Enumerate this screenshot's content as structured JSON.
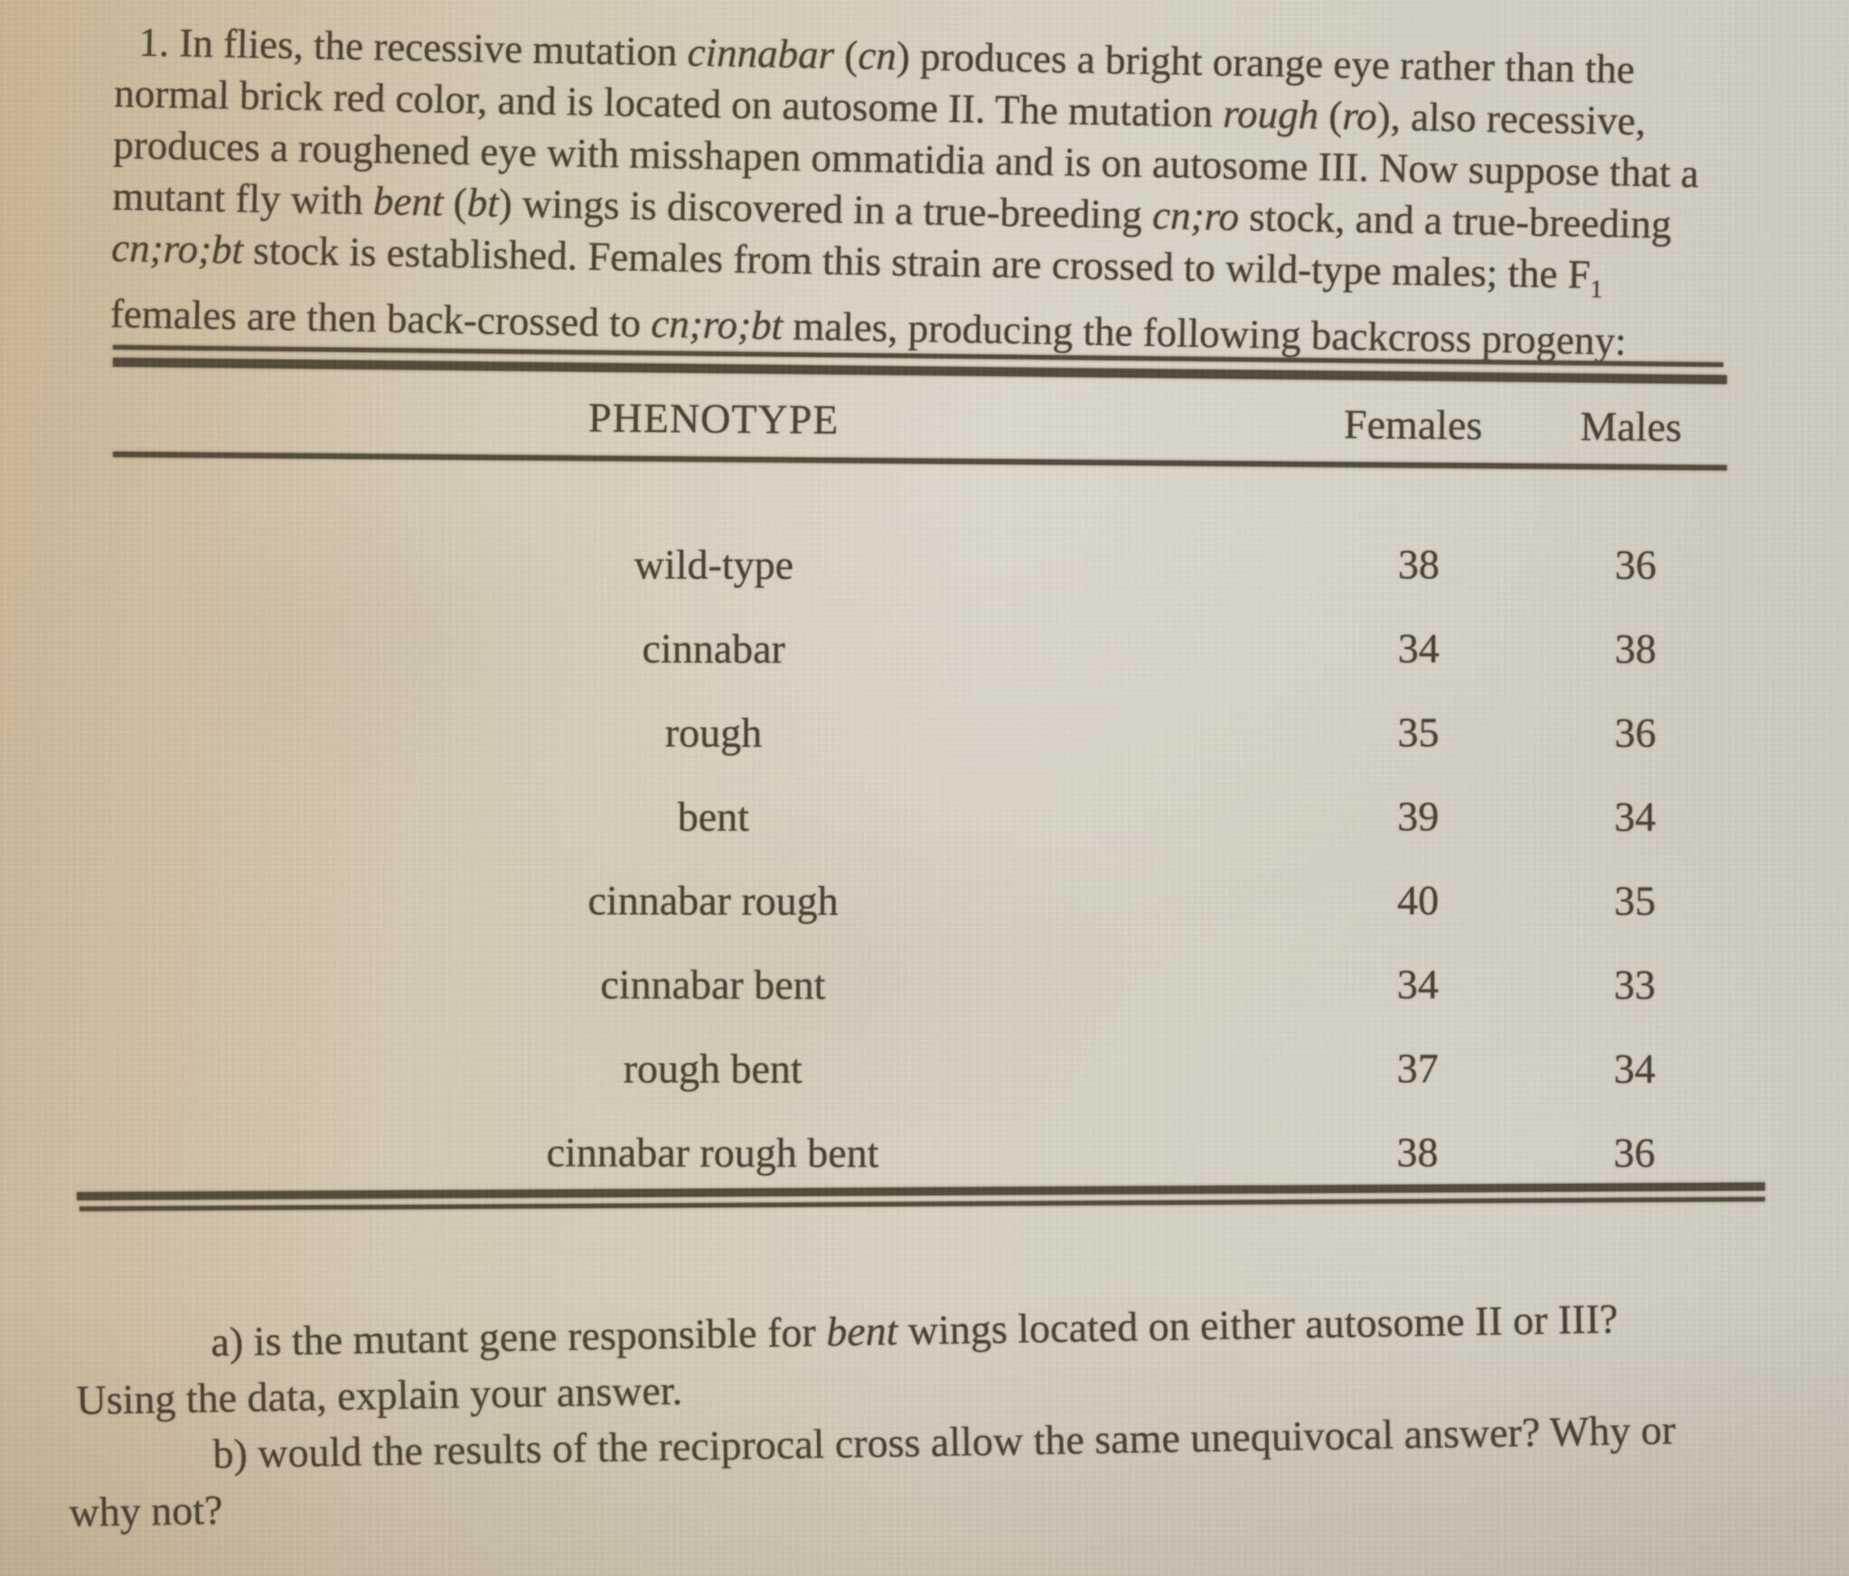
{
  "colors": {
    "paper_tan": "#cdbb9e",
    "paper_light": "#d9d3c5",
    "ink": "#4b4334",
    "rule": "#534c3a"
  },
  "intro": {
    "lines": [
      {
        "indent": 26,
        "seg": [
          {
            "t": "1. In flies, the recessive mutation "
          },
          {
            "t": "cinnabar",
            "i": true
          },
          {
            "t": " ("
          },
          {
            "t": "cn",
            "i": true
          },
          {
            "t": ") produces a bright orange eye rather than the"
          }
        ]
      },
      {
        "seg": [
          {
            "t": "normal brick red color, and is located on autosome II. The mutation "
          },
          {
            "t": "rough",
            "i": true
          },
          {
            "t": " ("
          },
          {
            "t": "ro",
            "i": true
          },
          {
            "t": "), also recessive,"
          }
        ]
      },
      {
        "seg": [
          {
            "t": "produces a roughened eye with misshapen ommatidia and is on autosome III. Now suppose that a"
          }
        ]
      },
      {
        "seg": [
          {
            "t": "mutant fly with "
          },
          {
            "t": "bent",
            "i": true
          },
          {
            "t": " ("
          },
          {
            "t": "bt",
            "i": true
          },
          {
            "t": ") wings is discovered in a true-breeding "
          },
          {
            "t": "cn;ro",
            "i": true
          },
          {
            "t": " stock, and a true-breeding"
          }
        ]
      },
      {
        "seg": [
          {
            "t": "cn;ro;bt",
            "i": true
          },
          {
            "t": " stock is established. Females from this strain are crossed to wild-type males; the F"
          },
          {
            "t": "1",
            "sub": true
          }
        ]
      },
      {
        "seg": [
          {
            "t": "females are then back-crossed to "
          },
          {
            "t": "cn;ro;bt",
            "i": true
          },
          {
            "t": " males, producing the following backcross progeny:"
          }
        ]
      }
    ]
  },
  "table": {
    "headers": {
      "phenotype": "PHENOTYPE",
      "females": "Females",
      "males": "Males"
    },
    "rows": [
      {
        "phenotype": "wild-type",
        "females": 38,
        "males": 36
      },
      {
        "phenotype": "cinnabar",
        "females": 34,
        "males": 38
      },
      {
        "phenotype": "rough",
        "females": 35,
        "males": 36
      },
      {
        "phenotype": "bent",
        "females": 39,
        "males": 34
      },
      {
        "phenotype": "cinnabar rough",
        "females": 40,
        "males": 35
      },
      {
        "phenotype": "cinnabar bent",
        "females": 34,
        "males": 33
      },
      {
        "phenotype": "rough bent",
        "females": 37,
        "males": 34
      },
      {
        "phenotype": "cinnabar rough bent",
        "females": 38,
        "males": 36
      }
    ]
  },
  "questions": {
    "lines": [
      {
        "indent": 165,
        "seg": [
          {
            "t": "a) is the mutant gene responsible for "
          },
          {
            "t": "bent",
            "i": true
          },
          {
            "t": " wings located on either autosome II or III?"
          }
        ]
      },
      {
        "indent": 15,
        "seg": [
          {
            "t": "Using the data, explain your answer."
          }
        ]
      },
      {
        "indent": 165,
        "seg": [
          {
            "t": "b) would the results of the reciprocal cross allow the same unequivocal answer? Why or"
          }
        ]
      },
      {
        "indent": 5,
        "seg": [
          {
            "t": "why not?"
          }
        ]
      }
    ]
  }
}
